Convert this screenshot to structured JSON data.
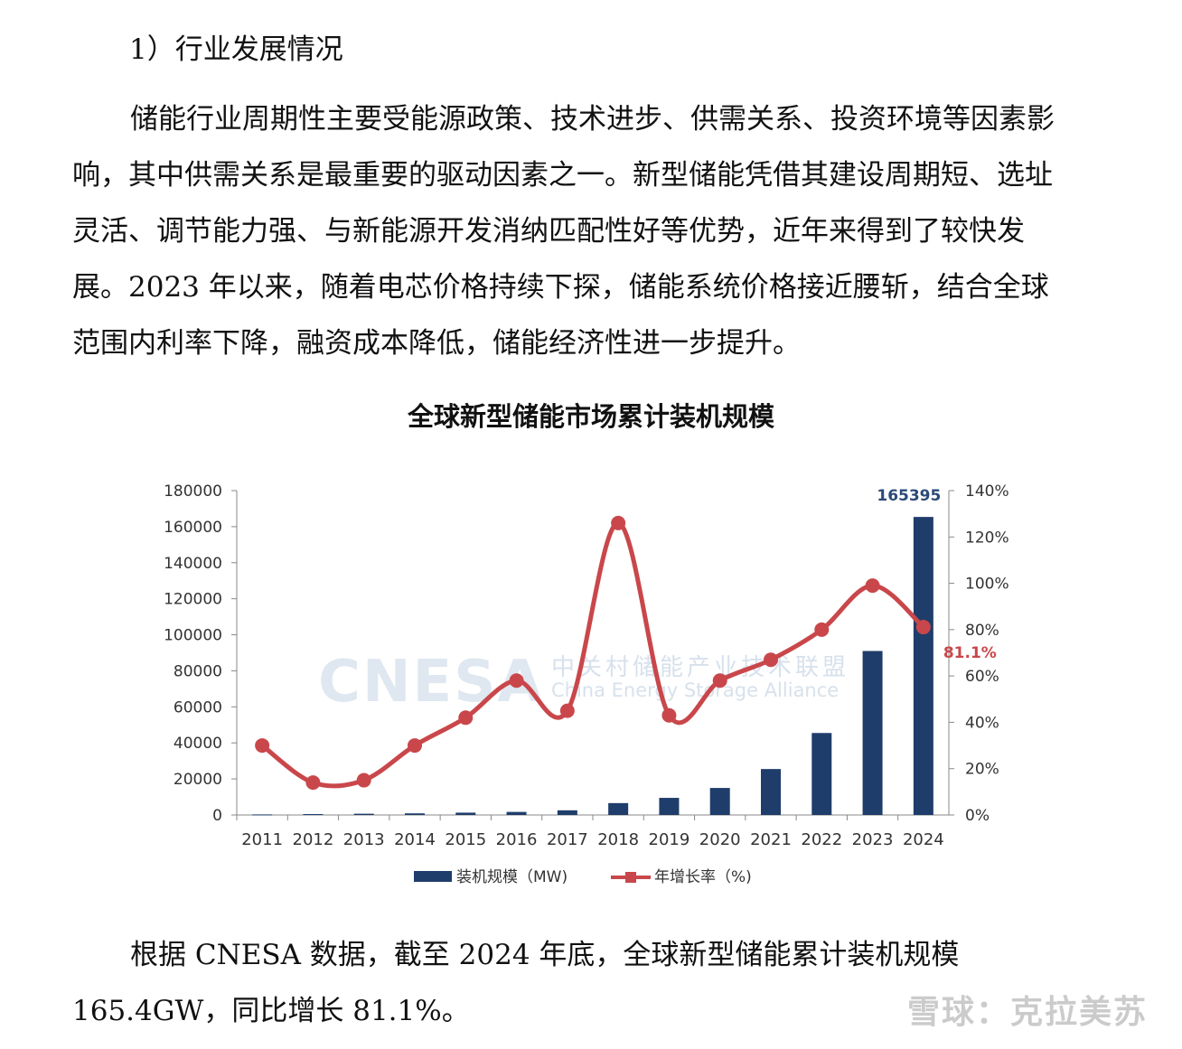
{
  "section_heading": "1）行业发展情况",
  "paragraph_1": "储能行业周期性主要受能源政策、技术进步、供需关系、投资环境等因素影响，其中供需关系是最重要的驱动因素之一。新型储能凭借其建设周期短、选址灵活、调节能力强、与新能源开发消纳匹配性好等优势，近年来得到了较快发展。2023 年以来，随着电芯价格持续下探，储能系统价格接近腰斩，结合全球范围内利率下降，融资成本降低，储能经济性进一步提升。",
  "paragraph_2": "根据 CNESA 数据，截至 2024 年底，全球新型储能累计装机规模 165.4GW，同比增长 81.1%。",
  "watermark_logo": "CNESA",
  "watermark_cn": "中关村储能产业技术联盟",
  "watermark_en": "China Energy Storage Alliance",
  "footer_watermark": "雪球：克拉美苏",
  "chart_data": {
    "type": "bar",
    "title": "全球新型储能市场累计装机规模",
    "categories": [
      "2011",
      "2012",
      "2013",
      "2014",
      "2015",
      "2016",
      "2017",
      "2018",
      "2019",
      "2020",
      "2021",
      "2022",
      "2023",
      "2024"
    ],
    "series": [
      {
        "name": "装机规模（MW)",
        "type": "bar",
        "axis": "left",
        "color": "#1f3d6b",
        "values": [
          300,
          500,
          700,
          900,
          1300,
          1700,
          2600,
          6600,
          9500,
          15000,
          25500,
          45500,
          91000,
          165395
        ]
      },
      {
        "name": "年增长率（%)",
        "type": "line",
        "axis": "right",
        "color": "#c9474b",
        "values": [
          30,
          14,
          15,
          30,
          42,
          58,
          45,
          126,
          43,
          58,
          67,
          80,
          99,
          81.1
        ]
      }
    ],
    "left_axis": {
      "min": 0,
      "max": 180000,
      "ticks": [
        "0",
        "20000",
        "40000",
        "60000",
        "80000",
        "100000",
        "120000",
        "140000",
        "160000",
        "180000"
      ]
    },
    "right_axis": {
      "min": 0,
      "max": 140,
      "ticks": [
        "0%",
        "20%",
        "40%",
        "60%",
        "80%",
        "100%",
        "120%",
        "140%"
      ]
    },
    "annotations": {
      "bar_last": "165395",
      "line_last": "81.1%"
    },
    "legend_position": "bottom",
    "grid": false
  }
}
